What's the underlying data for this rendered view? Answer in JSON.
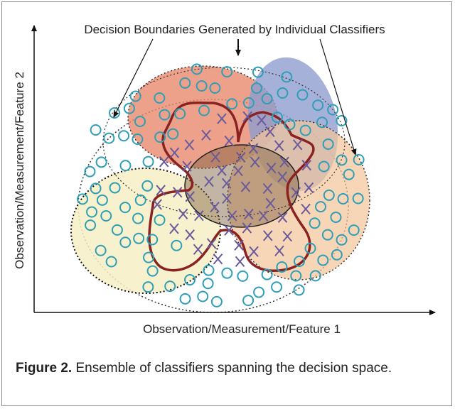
{
  "figure": {
    "annotation": "Decision Boundaries Generated by Individual Classifiers",
    "y_axis_label": "Observation/Measurement/Feature 2",
    "x_axis_label": "Observation/Measurement/Feature 1",
    "caption": {
      "label": "Figure 2.",
      "text": "Ensemble of classifiers spanning the decision space."
    }
  }
}
